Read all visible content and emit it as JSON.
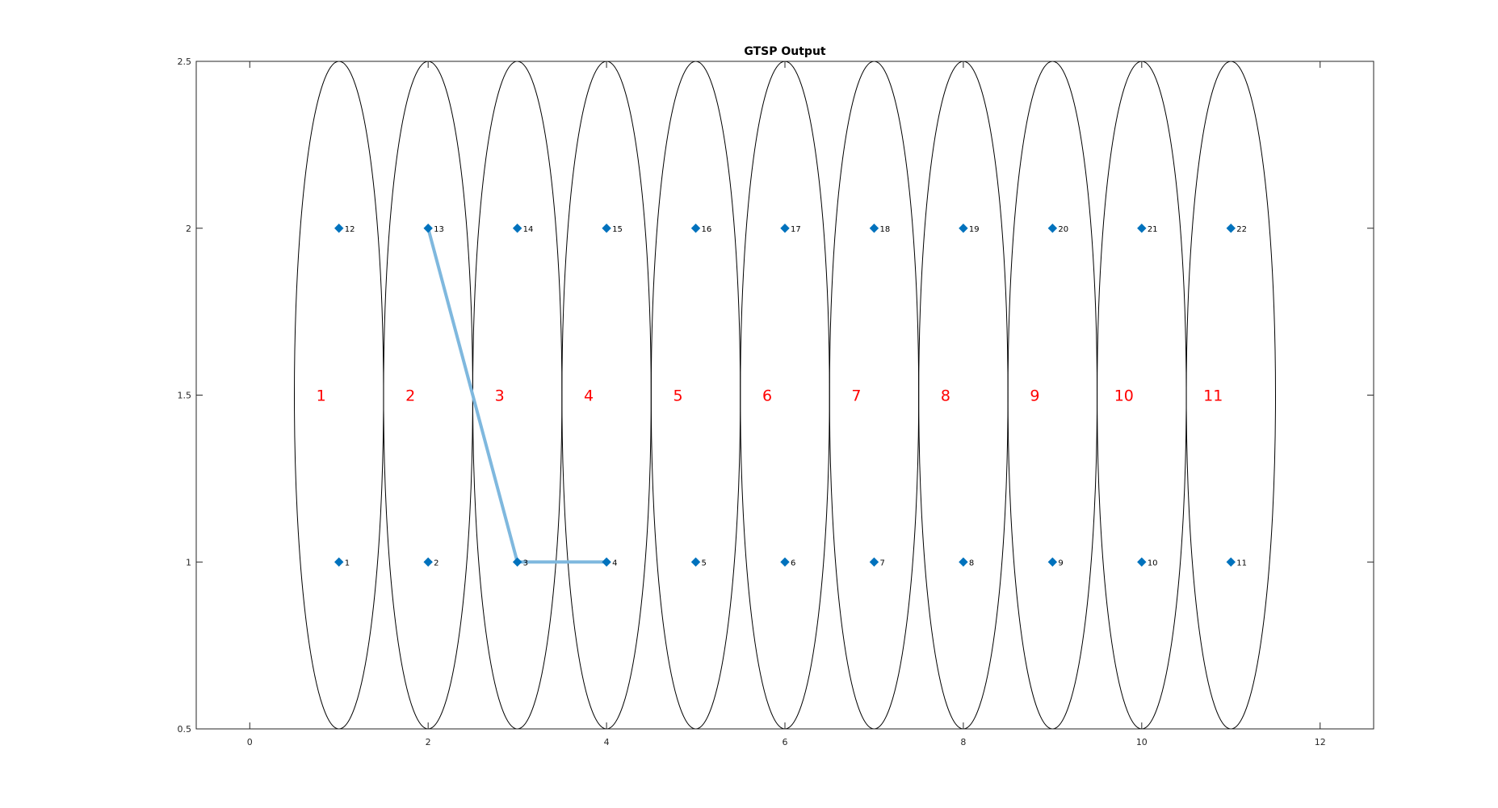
{
  "chart_data": {
    "type": "scatter",
    "title": "GTSP Output",
    "xlabel": "",
    "ylabel": "",
    "xlim": [
      -0.6,
      12.6
    ],
    "ylim": [
      0.5,
      2.5
    ],
    "xticks": [
      "0",
      "2",
      "4",
      "6",
      "8",
      "10",
      "12"
    ],
    "yticks": [
      "0.5",
      "1",
      "1.5",
      "2",
      "2.5"
    ],
    "grid": false,
    "nodes": [
      {
        "label": "1",
        "x": 1,
        "y": 1
      },
      {
        "label": "2",
        "x": 2,
        "y": 1
      },
      {
        "label": "3",
        "x": 3,
        "y": 1
      },
      {
        "label": "4",
        "x": 4,
        "y": 1
      },
      {
        "label": "5",
        "x": 5,
        "y": 1
      },
      {
        "label": "6",
        "x": 6,
        "y": 1
      },
      {
        "label": "7",
        "x": 7,
        "y": 1
      },
      {
        "label": "8",
        "x": 8,
        "y": 1
      },
      {
        "label": "9",
        "x": 9,
        "y": 1
      },
      {
        "label": "10",
        "x": 10,
        "y": 1
      },
      {
        "label": "11",
        "x": 11,
        "y": 1
      },
      {
        "label": "12",
        "x": 1,
        "y": 2
      },
      {
        "label": "13",
        "x": 2,
        "y": 2
      },
      {
        "label": "14",
        "x": 3,
        "y": 2
      },
      {
        "label": "15",
        "x": 4,
        "y": 2
      },
      {
        "label": "16",
        "x": 5,
        "y": 2
      },
      {
        "label": "17",
        "x": 6,
        "y": 2
      },
      {
        "label": "18",
        "x": 7,
        "y": 2
      },
      {
        "label": "19",
        "x": 8,
        "y": 2
      },
      {
        "label": "20",
        "x": 9,
        "y": 2
      },
      {
        "label": "21",
        "x": 10,
        "y": 2
      },
      {
        "label": "22",
        "x": 11,
        "y": 2
      }
    ],
    "clusters": [
      {
        "label": "1",
        "cx": 1,
        "cy": 1.5,
        "rx": 0.5,
        "ry": 1.0
      },
      {
        "label": "2",
        "cx": 2,
        "cy": 1.5,
        "rx": 0.5,
        "ry": 1.0
      },
      {
        "label": "3",
        "cx": 3,
        "cy": 1.5,
        "rx": 0.5,
        "ry": 1.0
      },
      {
        "label": "4",
        "cx": 4,
        "cy": 1.5,
        "rx": 0.5,
        "ry": 1.0
      },
      {
        "label": "5",
        "cx": 5,
        "cy": 1.5,
        "rx": 0.5,
        "ry": 1.0
      },
      {
        "label": "6",
        "cx": 6,
        "cy": 1.5,
        "rx": 0.5,
        "ry": 1.0
      },
      {
        "label": "7",
        "cx": 7,
        "cy": 1.5,
        "rx": 0.5,
        "ry": 1.0
      },
      {
        "label": "8",
        "cx": 8,
        "cy": 1.5,
        "rx": 0.5,
        "ry": 1.0
      },
      {
        "label": "9",
        "cx": 9,
        "cy": 1.5,
        "rx": 0.5,
        "ry": 1.0
      },
      {
        "label": "10",
        "cx": 10,
        "cy": 1.5,
        "rx": 0.5,
        "ry": 1.0
      },
      {
        "label": "11",
        "cx": 11,
        "cy": 1.5,
        "rx": 0.5,
        "ry": 1.0
      }
    ],
    "path": [
      {
        "x": 2,
        "y": 2
      },
      {
        "x": 3,
        "y": 1
      },
      {
        "x": 4,
        "y": 1
      }
    ],
    "colors": {
      "node": "#0072bd",
      "path": "#7fb8de",
      "cluster_label": "#ff0000",
      "ellipse": "#000000",
      "axis": "#262626"
    }
  }
}
